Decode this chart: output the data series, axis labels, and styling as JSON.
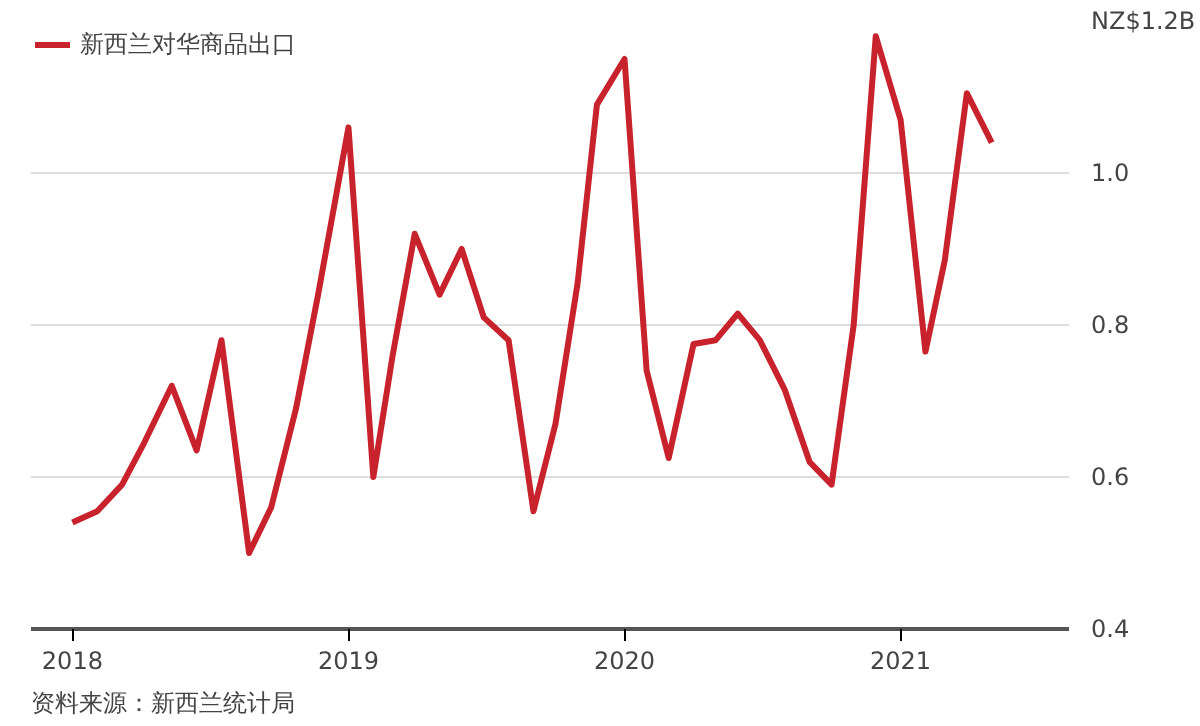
{
  "chart_data": {
    "type": "line",
    "x": [
      2018.0,
      2018.09,
      2018.18,
      2018.26,
      2018.36,
      2018.45,
      2018.54,
      2018.64,
      2018.72,
      2018.81,
      2018.89,
      2019.0,
      2019.09,
      2019.16,
      2019.24,
      2019.33,
      2019.41,
      2019.49,
      2019.58,
      2019.67,
      2019.75,
      2019.83,
      2019.9,
      2020.0,
      2020.08,
      2020.16,
      2020.25,
      2020.33,
      2020.41,
      2020.49,
      2020.58,
      2020.67,
      2020.75,
      2020.83,
      2020.91,
      2021.0,
      2021.09,
      2021.16,
      2021.24,
      2021.33
    ],
    "series": [
      {
        "name": "新西兰对华商品出口",
        "color": "#c8232c",
        "values": [
          0.54,
          0.555,
          0.59,
          0.645,
          0.72,
          0.635,
          0.78,
          0.5,
          0.56,
          0.69,
          0.84,
          1.06,
          0.6,
          0.76,
          0.92,
          0.84,
          0.9,
          0.81,
          0.78,
          0.555,
          0.67,
          0.855,
          1.09,
          1.15,
          0.74,
          0.625,
          0.775,
          0.78,
          0.815,
          0.78,
          0.715,
          0.62,
          0.59,
          0.8,
          1.18,
          1.07,
          0.765,
          0.885,
          1.105,
          1.04
        ]
      }
    ],
    "xlim": [
      2017.85,
      2021.61
    ],
    "ylim": [
      0.4,
      1.2
    ],
    "xticks": [
      2018,
      2019,
      2020,
      2021
    ],
    "yticks": [
      0.4,
      0.6,
      0.8,
      {
        "value": 1.0,
        "label": "1.0"
      },
      {
        "value": 1.2,
        "label": "NZ$1.2B"
      }
    ],
    "grid": "y",
    "legend": "top left",
    "marker": "none",
    "line_style": "solid",
    "annotations": [
      "资料来源：新西兰统计局"
    ]
  }
}
